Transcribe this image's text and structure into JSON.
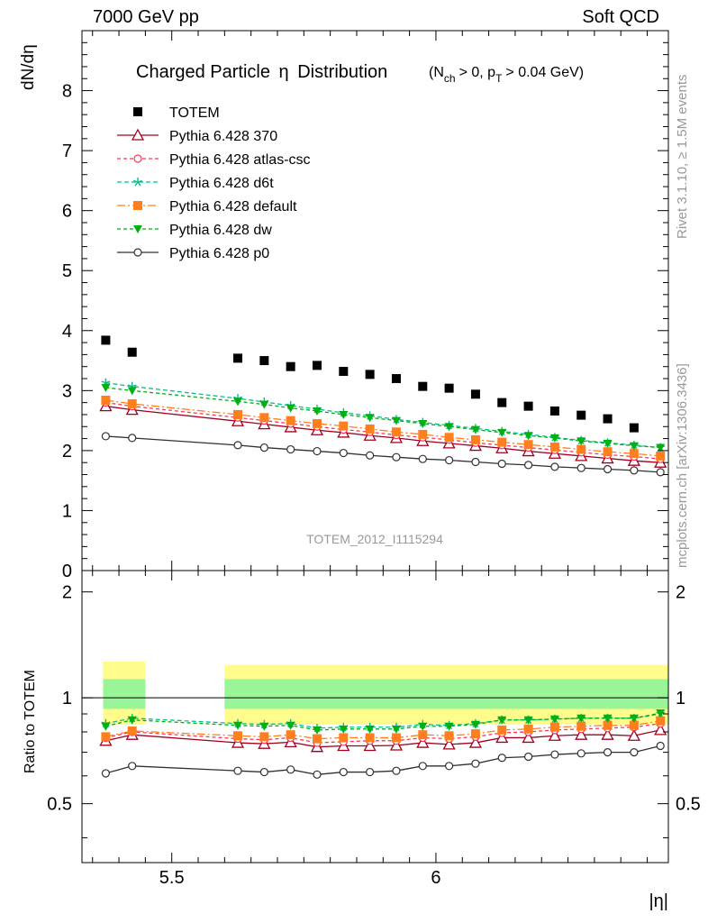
{
  "header": {
    "left": "7000 GeV pp",
    "right": "Soft QCD"
  },
  "side": {
    "rivet": "Rivet 3.1.10, ≥ 1.5M events",
    "mcplots": "mcplots.cern.ch [arXiv:1306.3436]"
  },
  "chart_data": {
    "type": "scatter",
    "title_main": "Charged Particle",
    "title_eta": "η",
    "title_suffix": "Distribution",
    "title_cond_n": "(N",
    "title_cond_n_sub": "ch",
    "title_cond_mid": "> 0, p",
    "title_cond_p_sub": "T",
    "title_cond_end": "> 0.04 GeV)",
    "analysis_id": "TOTEM_2012_I1115294",
    "ylabel_top": "dN/dη",
    "ylabel_bottom": "Ratio to TOTEM",
    "xlabel": "|η|",
    "xlim": [
      5.33,
      6.44
    ],
    "ylim_top": [
      0,
      9
    ],
    "ylim_ratio": [
      0.34,
      2.3
    ],
    "x_ticks": [
      "5.5",
      "6"
    ],
    "y_ticks_top": [
      "0",
      "1",
      "2",
      "3",
      "4",
      "5",
      "6",
      "7",
      "8"
    ],
    "y_ticks_ratio": [
      "0.5",
      "1",
      "2"
    ],
    "x": [
      5.375,
      5.425,
      5.625,
      5.675,
      5.725,
      5.775,
      5.825,
      5.875,
      5.925,
      5.975,
      6.025,
      6.075,
      6.125,
      6.175,
      6.225,
      6.275,
      6.325,
      6.375,
      6.425
    ],
    "totem": {
      "name": "TOTEM",
      "x": [
        5.375,
        5.425,
        5.625,
        5.675,
        5.725,
        5.775,
        5.825,
        5.875,
        5.925,
        5.975,
        6.025,
        6.075,
        6.125,
        6.175,
        6.225,
        6.275,
        6.325,
        6.375
      ],
      "values": [
        3.84,
        3.64,
        3.54,
        3.5,
        3.4,
        3.42,
        3.32,
        3.27,
        3.2,
        3.07,
        3.04,
        2.94,
        2.8,
        2.74,
        2.66,
        2.59,
        2.53,
        2.38
      ]
    },
    "bands": [
      {
        "x0": 5.37,
        "x1": 5.45,
        "stat": [
          0.93,
          1.13
        ],
        "syst": [
          0.84,
          1.27
        ]
      },
      {
        "x0": 5.6,
        "x1": 6.44,
        "stat": [
          0.93,
          1.13
        ],
        "syst": [
          0.84,
          1.24
        ]
      }
    ],
    "series": [
      {
        "name": "Pythia 6.428 370",
        "color": "#a00020",
        "marker": "triangle-open",
        "values": [
          2.74,
          2.68,
          2.49,
          2.44,
          2.39,
          2.34,
          2.3,
          2.25,
          2.21,
          2.16,
          2.12,
          2.08,
          2.04,
          1.99,
          1.95,
          1.91,
          1.87,
          1.83,
          1.8
        ],
        "ratio": [
          0.755,
          0.785,
          0.745,
          0.74,
          0.748,
          0.725,
          0.73,
          0.73,
          0.732,
          0.745,
          0.737,
          0.745,
          0.77,
          0.77,
          0.78,
          0.785,
          0.785,
          0.78,
          0.81
        ]
      },
      {
        "name": "Pythia 6.428 atlas-csc",
        "color": "#ff3355",
        "marker": "circle-open",
        "dash": "4 3",
        "values": [
          2.8,
          2.74,
          2.55,
          2.5,
          2.45,
          2.4,
          2.35,
          2.31,
          2.26,
          2.22,
          2.18,
          2.13,
          2.09,
          2.05,
          2.01,
          1.97,
          1.93,
          1.9,
          1.86
        ],
        "ratio": [
          0.77,
          0.8,
          0.765,
          0.76,
          0.77,
          0.745,
          0.75,
          0.755,
          0.755,
          0.77,
          0.765,
          0.775,
          0.795,
          0.8,
          0.81,
          0.815,
          0.82,
          0.825,
          0.845
        ]
      },
      {
        "name": "Pythia 6.428 d6t",
        "color": "#00c090",
        "marker": "star",
        "dash": "5 3",
        "values": [
          3.13,
          3.07,
          2.87,
          2.81,
          2.75,
          2.69,
          2.63,
          2.58,
          2.52,
          2.47,
          2.42,
          2.37,
          2.32,
          2.27,
          2.22,
          2.17,
          2.13,
          2.09,
          2.05
        ],
        "ratio": [
          0.845,
          0.875,
          0.845,
          0.84,
          0.845,
          0.82,
          0.825,
          0.825,
          0.825,
          0.84,
          0.835,
          0.845,
          0.865,
          0.865,
          0.87,
          0.875,
          0.875,
          0.875,
          0.9
        ]
      },
      {
        "name": "Pythia 6.428 default",
        "color": "#ff7f1e",
        "marker": "square",
        "dash": "9 3 2 3",
        "values": [
          2.84,
          2.78,
          2.6,
          2.55,
          2.5,
          2.45,
          2.41,
          2.36,
          2.31,
          2.27,
          2.22,
          2.18,
          2.14,
          2.1,
          2.06,
          2.02,
          1.98,
          1.95,
          1.91
        ],
        "ratio": [
          0.775,
          0.805,
          0.78,
          0.775,
          0.785,
          0.765,
          0.77,
          0.77,
          0.77,
          0.785,
          0.78,
          0.79,
          0.81,
          0.815,
          0.825,
          0.83,
          0.835,
          0.835,
          0.86
        ]
      },
      {
        "name": "Pythia 6.428 dw",
        "color": "#00b010",
        "marker": "triangle-down",
        "dash": "4 3",
        "values": [
          3.05,
          3.0,
          2.82,
          2.77,
          2.71,
          2.66,
          2.6,
          2.55,
          2.5,
          2.45,
          2.4,
          2.35,
          2.3,
          2.25,
          2.21,
          2.16,
          2.12,
          2.08,
          2.05
        ],
        "ratio": [
          0.83,
          0.865,
          0.835,
          0.83,
          0.835,
          0.81,
          0.815,
          0.815,
          0.815,
          0.83,
          0.83,
          0.84,
          0.865,
          0.865,
          0.87,
          0.875,
          0.875,
          0.875,
          0.905
        ]
      },
      {
        "name": "Pythia 6.428 p0",
        "color": "#303030",
        "marker": "circle-open",
        "values": [
          2.24,
          2.21,
          2.09,
          2.05,
          2.02,
          1.99,
          1.96,
          1.92,
          1.89,
          1.86,
          1.84,
          1.81,
          1.78,
          1.76,
          1.73,
          1.71,
          1.69,
          1.67,
          1.64
        ],
        "ratio": [
          0.61,
          0.64,
          0.62,
          0.615,
          0.625,
          0.605,
          0.615,
          0.615,
          0.62,
          0.64,
          0.64,
          0.65,
          0.675,
          0.68,
          0.69,
          0.695,
          0.7,
          0.7,
          0.73
        ]
      }
    ]
  }
}
